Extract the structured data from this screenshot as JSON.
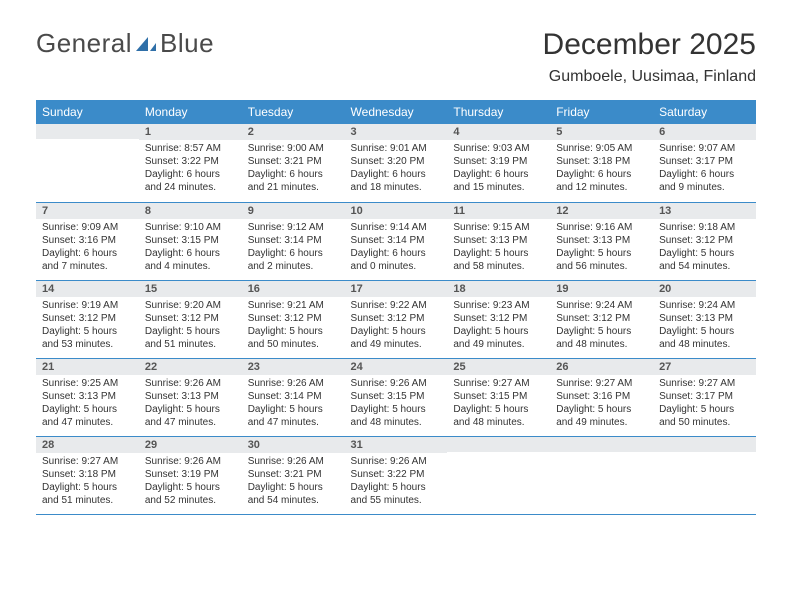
{
  "brand": {
    "left": "General",
    "right": "Blue",
    "accent_color": "#2f6fa8"
  },
  "title": "December 2025",
  "location": "Gumboele, Uusimaa, Finland",
  "header_bg": "#3b8bc9",
  "daynum_bg": "#e8eaec",
  "border_color": "#3b8bc9",
  "weekdays": [
    "Sunday",
    "Monday",
    "Tuesday",
    "Wednesday",
    "Thursday",
    "Friday",
    "Saturday"
  ],
  "weeks": [
    [
      {
        "n": "",
        "sr": "",
        "ss": "",
        "dl": ""
      },
      {
        "n": "1",
        "sr": "Sunrise: 8:57 AM",
        "ss": "Sunset: 3:22 PM",
        "dl": "Daylight: 6 hours and 24 minutes."
      },
      {
        "n": "2",
        "sr": "Sunrise: 9:00 AM",
        "ss": "Sunset: 3:21 PM",
        "dl": "Daylight: 6 hours and 21 minutes."
      },
      {
        "n": "3",
        "sr": "Sunrise: 9:01 AM",
        "ss": "Sunset: 3:20 PM",
        "dl": "Daylight: 6 hours and 18 minutes."
      },
      {
        "n": "4",
        "sr": "Sunrise: 9:03 AM",
        "ss": "Sunset: 3:19 PM",
        "dl": "Daylight: 6 hours and 15 minutes."
      },
      {
        "n": "5",
        "sr": "Sunrise: 9:05 AM",
        "ss": "Sunset: 3:18 PM",
        "dl": "Daylight: 6 hours and 12 minutes."
      },
      {
        "n": "6",
        "sr": "Sunrise: 9:07 AM",
        "ss": "Sunset: 3:17 PM",
        "dl": "Daylight: 6 hours and 9 minutes."
      }
    ],
    [
      {
        "n": "7",
        "sr": "Sunrise: 9:09 AM",
        "ss": "Sunset: 3:16 PM",
        "dl": "Daylight: 6 hours and 7 minutes."
      },
      {
        "n": "8",
        "sr": "Sunrise: 9:10 AM",
        "ss": "Sunset: 3:15 PM",
        "dl": "Daylight: 6 hours and 4 minutes."
      },
      {
        "n": "9",
        "sr": "Sunrise: 9:12 AM",
        "ss": "Sunset: 3:14 PM",
        "dl": "Daylight: 6 hours and 2 minutes."
      },
      {
        "n": "10",
        "sr": "Sunrise: 9:14 AM",
        "ss": "Sunset: 3:14 PM",
        "dl": "Daylight: 6 hours and 0 minutes."
      },
      {
        "n": "11",
        "sr": "Sunrise: 9:15 AM",
        "ss": "Sunset: 3:13 PM",
        "dl": "Daylight: 5 hours and 58 minutes."
      },
      {
        "n": "12",
        "sr": "Sunrise: 9:16 AM",
        "ss": "Sunset: 3:13 PM",
        "dl": "Daylight: 5 hours and 56 minutes."
      },
      {
        "n": "13",
        "sr": "Sunrise: 9:18 AM",
        "ss": "Sunset: 3:12 PM",
        "dl": "Daylight: 5 hours and 54 minutes."
      }
    ],
    [
      {
        "n": "14",
        "sr": "Sunrise: 9:19 AM",
        "ss": "Sunset: 3:12 PM",
        "dl": "Daylight: 5 hours and 53 minutes."
      },
      {
        "n": "15",
        "sr": "Sunrise: 9:20 AM",
        "ss": "Sunset: 3:12 PM",
        "dl": "Daylight: 5 hours and 51 minutes."
      },
      {
        "n": "16",
        "sr": "Sunrise: 9:21 AM",
        "ss": "Sunset: 3:12 PM",
        "dl": "Daylight: 5 hours and 50 minutes."
      },
      {
        "n": "17",
        "sr": "Sunrise: 9:22 AM",
        "ss": "Sunset: 3:12 PM",
        "dl": "Daylight: 5 hours and 49 minutes."
      },
      {
        "n": "18",
        "sr": "Sunrise: 9:23 AM",
        "ss": "Sunset: 3:12 PM",
        "dl": "Daylight: 5 hours and 49 minutes."
      },
      {
        "n": "19",
        "sr": "Sunrise: 9:24 AM",
        "ss": "Sunset: 3:12 PM",
        "dl": "Daylight: 5 hours and 48 minutes."
      },
      {
        "n": "20",
        "sr": "Sunrise: 9:24 AM",
        "ss": "Sunset: 3:13 PM",
        "dl": "Daylight: 5 hours and 48 minutes."
      }
    ],
    [
      {
        "n": "21",
        "sr": "Sunrise: 9:25 AM",
        "ss": "Sunset: 3:13 PM",
        "dl": "Daylight: 5 hours and 47 minutes."
      },
      {
        "n": "22",
        "sr": "Sunrise: 9:26 AM",
        "ss": "Sunset: 3:13 PM",
        "dl": "Daylight: 5 hours and 47 minutes."
      },
      {
        "n": "23",
        "sr": "Sunrise: 9:26 AM",
        "ss": "Sunset: 3:14 PM",
        "dl": "Daylight: 5 hours and 47 minutes."
      },
      {
        "n": "24",
        "sr": "Sunrise: 9:26 AM",
        "ss": "Sunset: 3:15 PM",
        "dl": "Daylight: 5 hours and 48 minutes."
      },
      {
        "n": "25",
        "sr": "Sunrise: 9:27 AM",
        "ss": "Sunset: 3:15 PM",
        "dl": "Daylight: 5 hours and 48 minutes."
      },
      {
        "n": "26",
        "sr": "Sunrise: 9:27 AM",
        "ss": "Sunset: 3:16 PM",
        "dl": "Daylight: 5 hours and 49 minutes."
      },
      {
        "n": "27",
        "sr": "Sunrise: 9:27 AM",
        "ss": "Sunset: 3:17 PM",
        "dl": "Daylight: 5 hours and 50 minutes."
      }
    ],
    [
      {
        "n": "28",
        "sr": "Sunrise: 9:27 AM",
        "ss": "Sunset: 3:18 PM",
        "dl": "Daylight: 5 hours and 51 minutes."
      },
      {
        "n": "29",
        "sr": "Sunrise: 9:26 AM",
        "ss": "Sunset: 3:19 PM",
        "dl": "Daylight: 5 hours and 52 minutes."
      },
      {
        "n": "30",
        "sr": "Sunrise: 9:26 AM",
        "ss": "Sunset: 3:21 PM",
        "dl": "Daylight: 5 hours and 54 minutes."
      },
      {
        "n": "31",
        "sr": "Sunrise: 9:26 AM",
        "ss": "Sunset: 3:22 PM",
        "dl": "Daylight: 5 hours and 55 minutes."
      },
      {
        "n": "",
        "sr": "",
        "ss": "",
        "dl": ""
      },
      {
        "n": "",
        "sr": "",
        "ss": "",
        "dl": ""
      },
      {
        "n": "",
        "sr": "",
        "ss": "",
        "dl": ""
      }
    ]
  ]
}
